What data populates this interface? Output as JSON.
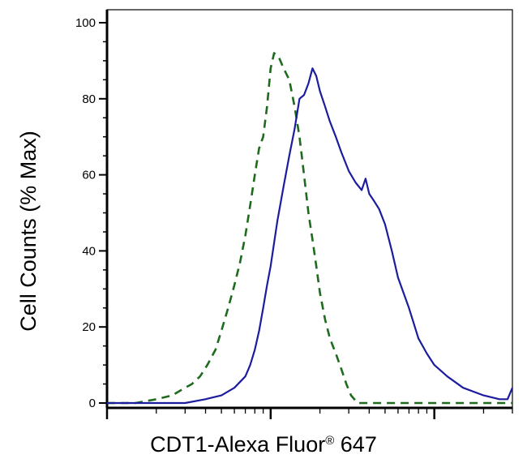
{
  "chart_data": {
    "type": "line",
    "title": "",
    "ylabel": "Cell Counts (% Max)",
    "xlabel": {
      "main": "CDT1-Alexa Fluor",
      "registered_mark": "®",
      "suffix": " 647"
    },
    "x_scale": "log",
    "xlim": [
      1,
      300
    ],
    "ylim": [
      0,
      100
    ],
    "y_ticks": [
      0,
      20,
      40,
      60,
      80,
      100
    ],
    "x_major_ticks": [
      1,
      10,
      100
    ],
    "grid": false,
    "legend": "none",
    "series": [
      {
        "style": "dashed",
        "color": "#1e6b1e",
        "x": [
          1.0,
          1.5,
          2.0,
          2.5,
          3.0,
          3.3,
          3.7,
          4.1,
          4.6,
          5.0,
          5.5,
          6.0,
          6.5,
          7.0,
          7.5,
          8.0,
          8.5,
          9.0,
          9.5,
          10.0,
          10.5,
          11.2,
          12.0,
          13.0,
          14.0,
          15.0,
          16.0,
          17.0,
          18.0,
          19.0,
          20.0,
          21.5,
          23.0,
          25.0,
          27.0,
          29.0,
          31.0,
          34.0,
          40.0,
          60.0,
          100.0,
          200.0,
          300.0
        ],
        "y": [
          0,
          0,
          1,
          2,
          4,
          5,
          7,
          10,
          14,
          19,
          25,
          31,
          37,
          44,
          52,
          60,
          67,
          70,
          78,
          88,
          92,
          91,
          88,
          85,
          78,
          70,
          60,
          50,
          43,
          36,
          29,
          22,
          17,
          13,
          9,
          5,
          2,
          0,
          0,
          0,
          0,
          0,
          0
        ]
      },
      {
        "style": "solid",
        "color": "#1c1c9e",
        "x": [
          1.0,
          2.0,
          3.0,
          4.0,
          5.0,
          6.0,
          7.0,
          7.5,
          8.0,
          8.5,
          9.0,
          9.5,
          10.0,
          11.0,
          12.0,
          13.0,
          14.0,
          15.0,
          16.0,
          17.0,
          18.0,
          19.0,
          20.0,
          21.5,
          23.0,
          25.0,
          27.0,
          30.0,
          33.0,
          36.0,
          38.0,
          40.0,
          43.0,
          46.0,
          50.0,
          55.0,
          60.0,
          70.0,
          80.0,
          90.0,
          100.0,
          120.0,
          150.0,
          200.0,
          250.0,
          280.0,
          300.0
        ],
        "y": [
          0,
          0,
          0,
          1,
          2,
          4,
          7,
          10,
          14,
          19,
          25,
          31,
          36,
          48,
          57,
          65,
          72,
          80,
          81,
          84,
          88,
          86,
          82,
          78,
          74,
          70,
          66,
          61,
          58,
          56,
          59,
          55,
          53,
          51,
          47,
          40,
          33,
          25,
          17,
          13,
          10,
          7,
          4,
          2,
          1,
          1,
          4
        ]
      }
    ]
  }
}
